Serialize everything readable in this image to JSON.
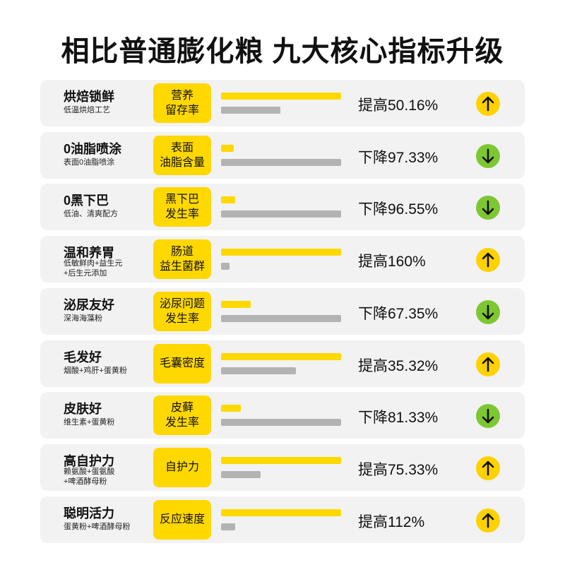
{
  "title": "相比普通膨化粮 九大核心指标升级",
  "rows": [
    {
      "name": "烘焙锁鲜",
      "desc": [
        "低温烘焙工艺"
      ],
      "label": [
        "营养",
        "留存率"
      ],
      "result": "提高50.16%"
    },
    {
      "name": "0油脂喷涂",
      "desc": [
        "表面0油脂喷涂"
      ],
      "label": [
        "表面",
        "油脂含量"
      ],
      "result": "下降97.33%"
    },
    {
      "name": "0黑下巴",
      "desc": [
        "低油、清爽配方"
      ],
      "label": [
        "黑下巴",
        "发生率"
      ],
      "result": "下降96.55%"
    },
    {
      "name": "温和养胃",
      "desc": [
        "低敏鲜肉+益生元",
        "+后生元添加"
      ],
      "label": [
        "肠道",
        "益生菌群"
      ],
      "result": "提高160%"
    },
    {
      "name": "泌尿友好",
      "desc": [
        "深海海藻粉"
      ],
      "label": [
        "泌尿问题",
        "发生率"
      ],
      "result": "下降67.35%"
    },
    {
      "name": "毛发好",
      "desc": [
        "烟酸+鸡肝+蛋黄粉"
      ],
      "label": [
        "毛囊密度"
      ],
      "result": "提高35.32%"
    },
    {
      "name": "皮肤好",
      "desc": [
        "维生素+蛋黄粉"
      ],
      "label": [
        "皮藓",
        "发生率"
      ],
      "result": "下降81.33%"
    },
    {
      "name": "高自护力",
      "desc": [
        "赖氨酸+蛋氨酸",
        "+啤酒酵母粉"
      ],
      "label": [
        "自护力"
      ],
      "result": "提高75.33%"
    },
    {
      "name": "聪明活力",
      "desc": [
        "蛋黄粉+啤酒酵母粉"
      ],
      "label": [
        "反应速度"
      ],
      "result": "提高112%"
    }
  ]
}
